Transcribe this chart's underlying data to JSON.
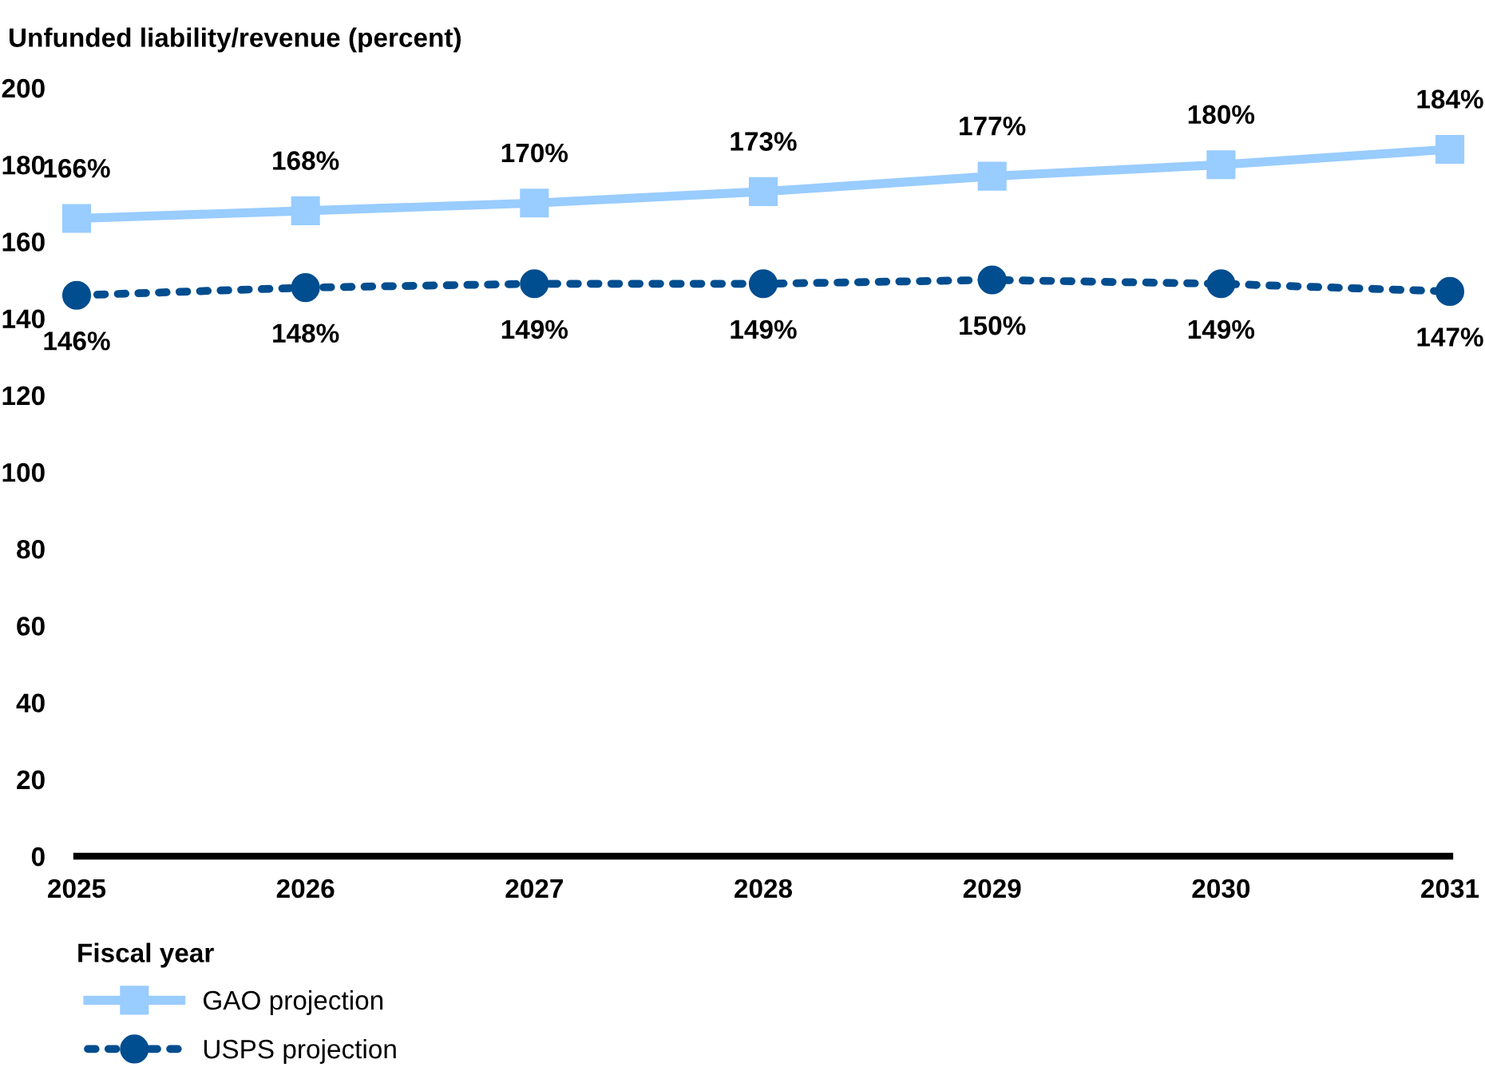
{
  "chart_data": {
    "type": "line",
    "ylabel": "Unfunded liability/revenue (percent)",
    "xlabel": "Fiscal year",
    "x": [
      2025,
      2026,
      2027,
      2028,
      2029,
      2030,
      2031
    ],
    "xlim": [
      2025,
      2031
    ],
    "xticks": [
      2025,
      2026,
      2027,
      2028,
      2029,
      2030,
      2031
    ],
    "ylim": [
      0,
      200
    ],
    "yticks": [
      0,
      20,
      40,
      60,
      80,
      100,
      120,
      140,
      160,
      180,
      200
    ],
    "grid": false,
    "legend": "bottom left",
    "series": [
      {
        "name": "GAO projection",
        "color": "#99ccff",
        "marker": "square",
        "line_style": "solid",
        "values": [
          166,
          168,
          170,
          173,
          177,
          180,
          184
        ],
        "value_labels": [
          "166%",
          "168%",
          "170%",
          "173%",
          "177%",
          "180%",
          "184%"
        ]
      },
      {
        "name": "USPS projection",
        "color": "#004d8f",
        "marker": "circle",
        "line_style": "dotted",
        "values": [
          146,
          148,
          149,
          149,
          150,
          149,
          147
        ],
        "value_labels": [
          "146%",
          "148%",
          "149%",
          "149%",
          "150%",
          "149%",
          "147%"
        ]
      }
    ]
  }
}
